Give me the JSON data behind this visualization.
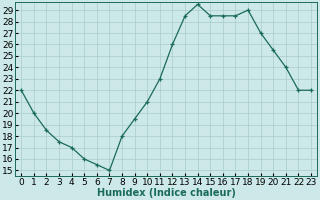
{
  "x": [
    0,
    1,
    2,
    3,
    4,
    5,
    6,
    7,
    8,
    9,
    10,
    11,
    12,
    13,
    14,
    15,
    16,
    17,
    18,
    19,
    20,
    21,
    22,
    23
  ],
  "y": [
    22,
    20,
    18.5,
    17.5,
    17,
    16,
    15.5,
    15,
    18,
    19.5,
    21,
    23,
    26,
    28.5,
    29.5,
    28.5,
    28.5,
    28.5,
    29,
    27,
    25.5,
    24,
    22,
    22
  ],
  "title": "",
  "xlabel": "Humidex (Indice chaleur)",
  "ylabel": "",
  "xlim": [
    -0.5,
    23.5
  ],
  "ylim": [
    15,
    29.5
  ],
  "yticks": [
    15,
    16,
    17,
    18,
    19,
    20,
    21,
    22,
    23,
    24,
    25,
    26,
    27,
    28,
    29
  ],
  "xticks": [
    0,
    1,
    2,
    3,
    4,
    5,
    6,
    7,
    8,
    9,
    10,
    11,
    12,
    13,
    14,
    15,
    16,
    17,
    18,
    19,
    20,
    21,
    22,
    23
  ],
  "line_color": "#1a6b5a",
  "marker": "+",
  "bg_color": "#cce8e8",
  "grid_color": "#aacccc",
  "label_fontsize": 7,
  "tick_fontsize": 6.5
}
